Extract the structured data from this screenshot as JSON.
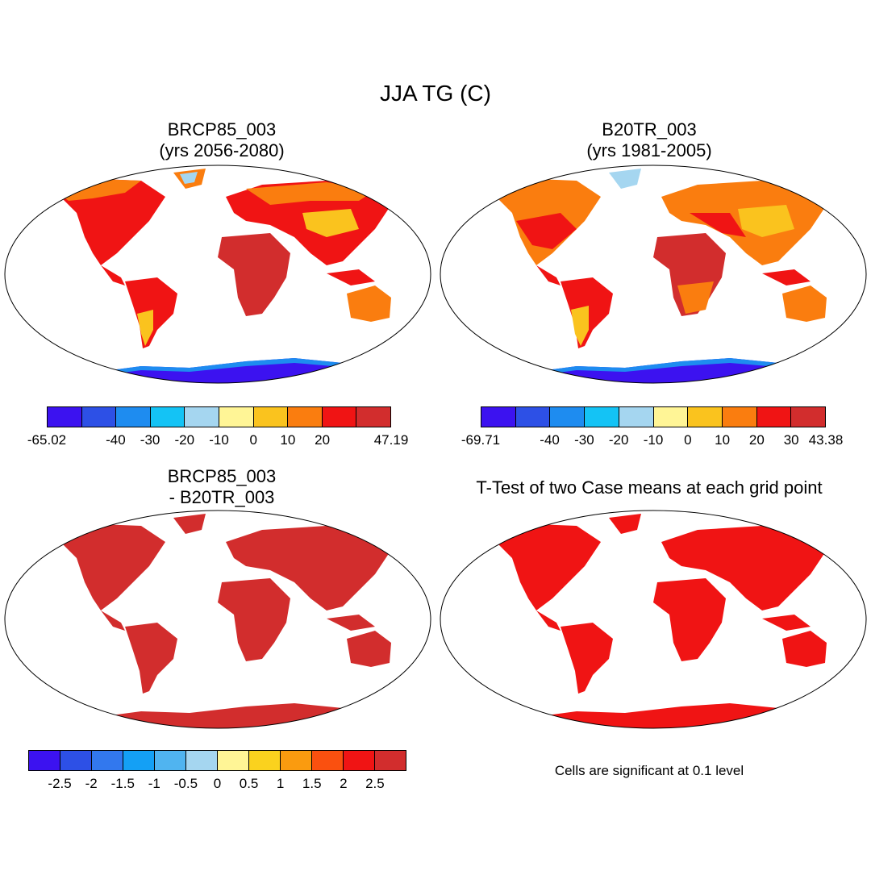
{
  "figure": {
    "title": "JJA TG (C)",
    "panels": [
      {
        "title_line1": "BRCP85_003",
        "title_line2": "(yrs 2056-2080)"
      },
      {
        "title_line1": "B20TR_003",
        "title_line2": "(yrs 1981-2005)"
      },
      {
        "title_line1": "BRCP85_003",
        "title_line2": "- B20TR_003"
      },
      {
        "title_line1": "T-Test of two Case means at each grid point",
        "title_line2": ""
      }
    ],
    "note": "Cells are significant at 0.1 level"
  },
  "colorbars": [
    {
      "colors": [
        "#3c12f0",
        "#2d50e6",
        "#1e8cf0",
        "#14c3f5",
        "#a5d6f0",
        "#fff596",
        "#fac31e",
        "#fa7d0f",
        "#f01414",
        "#d22d2d"
      ],
      "labels": [
        "-65.02",
        "-40",
        "-30",
        "-20",
        "-10",
        "0",
        "10",
        "20",
        "47.19"
      ]
    },
    {
      "colors": [
        "#3c12f0",
        "#2d50e6",
        "#1e8cf0",
        "#14c3f5",
        "#a5d6f0",
        "#fff596",
        "#fac31e",
        "#fa7d0f",
        "#f01414",
        "#d22d2d"
      ],
      "labels": [
        "-69.71",
        "-40",
        "-30",
        "-20",
        "-10",
        "0",
        "10",
        "20",
        "30",
        "43.38"
      ]
    },
    {
      "colors": [
        "#3c12f0",
        "#2d50e6",
        "#3278ee",
        "#14a0f5",
        "#50b4f0",
        "#a5d6f0",
        "#fff596",
        "#fad21e",
        "#fa9b0f",
        "#fa500f",
        "#f01414",
        "#d22d2d"
      ],
      "labels": [
        "-2.5",
        "-2",
        "-1.5",
        "-1",
        "-0.5",
        "0",
        "0.5",
        "1",
        "1.5",
        "2",
        "2.5"
      ]
    }
  ]
}
